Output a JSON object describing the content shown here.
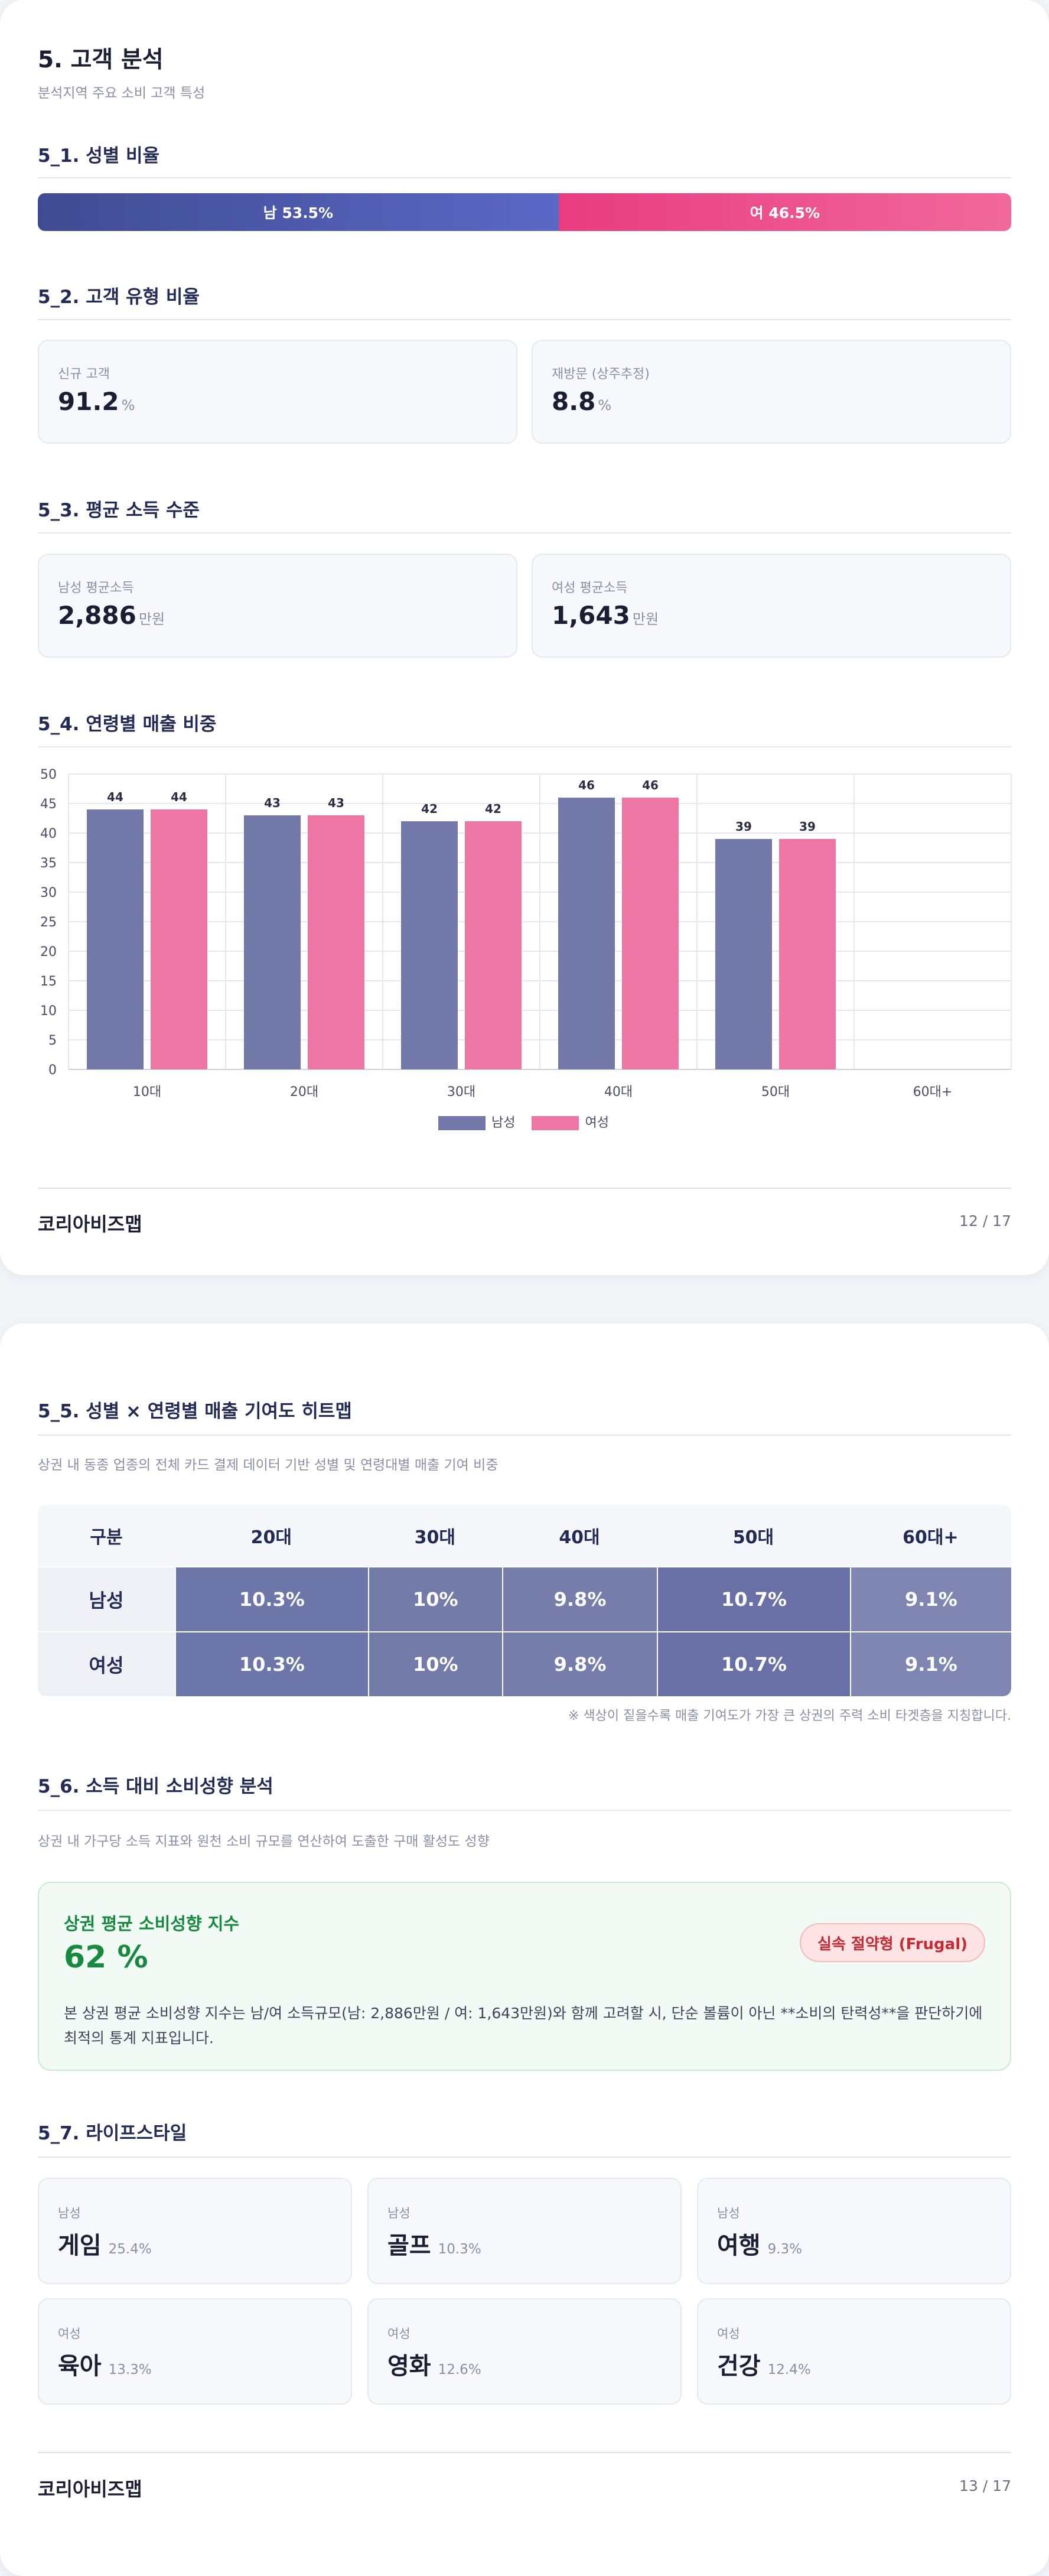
{
  "page1": {
    "title": "5. 고객 분석",
    "subtitle": "분석지역 주요 소비 고객 특성",
    "gender": {
      "section_title": "5_1. 성별 비율",
      "male_label": "남 53.5%",
      "female_label": "여 46.5%",
      "male_ratio": 53.5,
      "female_ratio": 46.5,
      "male_color": "#4a58a8",
      "female_color": "#ec4f8b"
    },
    "customer_type": {
      "section_title": "5_2. 고객 유형 비율",
      "cards": [
        {
          "label": "신규 고객",
          "value": "91.2",
          "unit": "%"
        },
        {
          "label": "재방문 (상주추정)",
          "value": "8.8",
          "unit": "%"
        }
      ]
    },
    "income": {
      "section_title": "5_3. 평균 소득 수준",
      "cards": [
        {
          "label": "남성 평균소득",
          "value": "2,886",
          "unit": "만원"
        },
        {
          "label": "여성 평균소득",
          "value": "1,643",
          "unit": "만원"
        }
      ]
    },
    "age_sales": {
      "section_title": "5_4. 연령별 매출 비중"
    },
    "footer": {
      "brand": "코리아비즈맵",
      "page": "12 / 17"
    }
  },
  "chart_data": {
    "type": "bar",
    "categories": [
      "10대",
      "20대",
      "30대",
      "40대",
      "50대",
      "60대+"
    ],
    "series": [
      {
        "name": "남성",
        "values": [
          44,
          43,
          42,
          46,
          39,
          null
        ],
        "color": "#7278a8"
      },
      {
        "name": "여성",
        "values": [
          44,
          43,
          42,
          46,
          39,
          null
        ],
        "color": "#ed76a5"
      }
    ],
    "ylim": [
      0,
      50
    ],
    "yticks": [
      0,
      5,
      10,
      15,
      20,
      25,
      30,
      35,
      40,
      45,
      50
    ],
    "grid": true,
    "legend": "bottom-center",
    "title": "",
    "xlabel": "",
    "ylabel": ""
  },
  "page2": {
    "heatmap": {
      "section_title": "5_5. 성별 × 연령별 매출 기여도 히트맵",
      "description": "상권 내 동종 업종의 전체 카드 결제 데이터 기반 성별 및 연령대별 매출 기여 비중",
      "corner": "구분",
      "columns": [
        "20대",
        "30대",
        "40대",
        "50대",
        "60대+"
      ],
      "rows": [
        {
          "label": "남성",
          "cells": [
            "10.3%",
            "10%",
            "9.8%",
            "10.7%",
            "9.1%"
          ]
        },
        {
          "label": "여성",
          "cells": [
            "10.3%",
            "10%",
            "9.8%",
            "10.7%",
            "9.1%"
          ]
        }
      ],
      "cell_colors": [
        "#6d76a8",
        "#737ba9",
        "#767dab",
        "#6870a5",
        "#7e86b1"
      ],
      "note": "※ 색상이 짙을수록 매출 기여도가 가장 큰 상권의 주력 소비 타겟층을 지칭합니다."
    },
    "propensity": {
      "section_title": "5_6. 소득 대비 소비성향 분석",
      "description": "상권 내 가구당 소득 지표와 원천 소비 규모를 연산하여 도출한 구매 활성도 성향",
      "card_title": "상권 평균 소비성향 지수",
      "value": "62 %",
      "badge": "실속 절약형 (Frugal)",
      "text": "본 상권 평균 소비성향 지수는 남/여 소득규모(남: 2,886만원 / 여: 1,643만원)와 함께 고려할 시, 단순 볼륨이 아닌 **소비의 탄력성**을 판단하기에 최적의 통계 지표입니다."
    },
    "lifestyle": {
      "section_title": "5_7. 라이프스타일",
      "items": [
        {
          "gender": "남성",
          "name": "게임",
          "pct": "25.4%"
        },
        {
          "gender": "남성",
          "name": "골프",
          "pct": "10.3%"
        },
        {
          "gender": "남성",
          "name": "여행",
          "pct": "9.3%"
        },
        {
          "gender": "여성",
          "name": "육아",
          "pct": "13.3%"
        },
        {
          "gender": "여성",
          "name": "영화",
          "pct": "12.6%"
        },
        {
          "gender": "여성",
          "name": "건강",
          "pct": "12.4%"
        }
      ]
    },
    "footer": {
      "brand": "코리아비즈맵",
      "page": "13 / 17"
    }
  }
}
